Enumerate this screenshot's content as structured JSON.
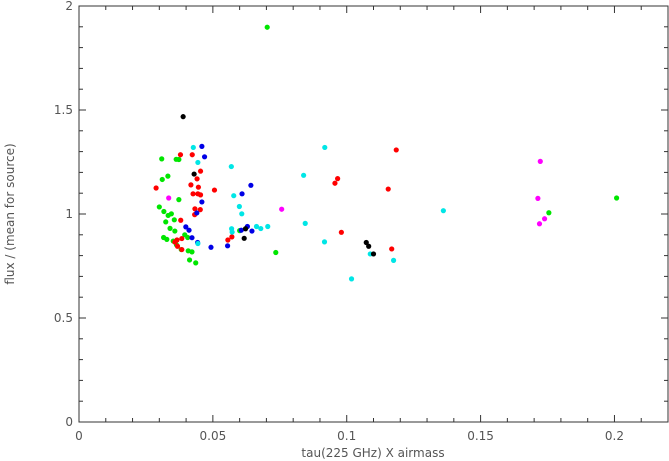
{
  "chart_data": {
    "type": "scatter",
    "title": "",
    "xlabel": "tau(225 GHz) X airmass",
    "ylabel": "flux / (mean for source)",
    "xlim": [
      0,
      0.22
    ],
    "ylim": [
      0,
      2
    ],
    "xticks": [
      0,
      0.05,
      0.1,
      0.15,
      0.2
    ],
    "xtick_labels": [
      "0",
      "0.05",
      "0.1",
      "0.15",
      "0.2"
    ],
    "yticks": [
      0,
      0.5,
      1,
      1.5,
      2
    ],
    "ytick_labels": [
      "0",
      "0.5",
      "1",
      "1.5",
      "2"
    ],
    "grid": false,
    "series": [
      {
        "color": "#00e600",
        "points": [
          [
            0.0703,
            1.898
          ],
          [
            0.0309,
            1.265
          ],
          [
            0.0332,
            1.182
          ],
          [
            0.0311,
            1.166
          ],
          [
            0.0363,
            1.263
          ],
          [
            0.0373,
            1.262
          ],
          [
            0.0373,
            1.069
          ],
          [
            0.03,
            1.034
          ],
          [
            0.0317,
            1.012
          ],
          [
            0.0345,
            1.001
          ],
          [
            0.0333,
            0.993
          ],
          [
            0.0356,
            0.972
          ],
          [
            0.0324,
            0.962
          ],
          [
            0.034,
            0.931
          ],
          [
            0.0358,
            0.918
          ],
          [
            0.0316,
            0.887
          ],
          [
            0.0328,
            0.878
          ],
          [
            0.0352,
            0.87
          ],
          [
            0.0364,
            0.852
          ],
          [
            0.0408,
            0.823
          ],
          [
            0.0422,
            0.818
          ],
          [
            0.0382,
            0.829
          ],
          [
            0.0413,
            0.779
          ],
          [
            0.0436,
            0.765
          ],
          [
            0.0395,
            0.9
          ],
          [
            0.0406,
            0.887
          ],
          [
            0.06,
            0.92
          ],
          [
            0.0735,
            0.815
          ],
          [
            0.1755,
            1.006
          ],
          [
            0.2008,
            1.077
          ]
        ]
      },
      {
        "color": "#ff0000",
        "points": [
          [
            0.0379,
            1.285
          ],
          [
            0.0423,
            1.285
          ],
          [
            0.0454,
            1.206
          ],
          [
            0.0441,
            1.169
          ],
          [
            0.0418,
            1.14
          ],
          [
            0.0446,
            1.129
          ],
          [
            0.0288,
            1.125
          ],
          [
            0.0426,
            1.097
          ],
          [
            0.0444,
            1.097
          ],
          [
            0.0454,
            1.092
          ],
          [
            0.0506,
            1.115
          ],
          [
            0.0433,
            1.025
          ],
          [
            0.0453,
            1.021
          ],
          [
            0.0432,
            0.997
          ],
          [
            0.0384,
            0.882
          ],
          [
            0.0366,
            0.875
          ],
          [
            0.0358,
            0.865
          ],
          [
            0.0368,
            0.845
          ],
          [
            0.0384,
            0.829
          ],
          [
            0.0556,
            0.875
          ],
          [
            0.0571,
            0.89
          ],
          [
            0.0966,
            1.17
          ],
          [
            0.0956,
            1.148
          ],
          [
            0.098,
            0.912
          ],
          [
            0.1155,
            1.12
          ],
          [
            0.1185,
            1.308
          ],
          [
            0.1168,
            0.832
          ],
          [
            0.038,
            0.97
          ]
        ]
      },
      {
        "color": "#0000e6",
        "points": [
          [
            0.0459,
            1.325
          ],
          [
            0.0469,
            1.275
          ],
          [
            0.0642,
            1.138
          ],
          [
            0.0609,
            1.097
          ],
          [
            0.0459,
            1.058
          ],
          [
            0.044,
            1.005
          ],
          [
            0.0399,
            0.938
          ],
          [
            0.0411,
            0.922
          ],
          [
            0.0422,
            0.886
          ],
          [
            0.0443,
            0.863
          ],
          [
            0.0555,
            0.847
          ],
          [
            0.0493,
            0.84
          ],
          [
            0.0606,
            0.922
          ],
          [
            0.0629,
            0.94
          ],
          [
            0.0646,
            0.918
          ]
        ]
      },
      {
        "color": "#00e6e6",
        "points": [
          [
            0.0918,
            1.32
          ],
          [
            0.0444,
            1.248
          ],
          [
            0.0569,
            1.228
          ],
          [
            0.0839,
            1.186
          ],
          [
            0.0427,
            1.32
          ],
          [
            0.0578,
            1.088
          ],
          [
            0.0599,
            1.036
          ],
          [
            0.0608,
            1.001
          ],
          [
            0.0663,
            0.94
          ],
          [
            0.0679,
            0.93
          ],
          [
            0.0705,
            0.94
          ],
          [
            0.057,
            0.929
          ],
          [
            0.0572,
            0.913
          ],
          [
            0.0845,
            0.955
          ],
          [
            0.0917,
            0.866
          ],
          [
            0.1018,
            0.688
          ],
          [
            0.1088,
            0.808
          ],
          [
            0.1175,
            0.777
          ],
          [
            0.1361,
            1.016
          ],
          [
            0.0444,
            0.858
          ]
        ]
      },
      {
        "color": "#000000",
        "points": [
          [
            0.0389,
            1.468
          ],
          [
            0.043,
            1.192
          ],
          [
            0.0617,
            0.883
          ],
          [
            0.1073,
            0.863
          ],
          [
            0.1082,
            0.845
          ],
          [
            0.11,
            0.808
          ],
          [
            0.0622,
            0.929
          ]
        ]
      },
      {
        "color": "#ff00ff",
        "points": [
          [
            0.0335,
            1.077
          ],
          [
            0.0757,
            1.023
          ],
          [
            0.1723,
            1.253
          ],
          [
            0.1714,
            1.075
          ],
          [
            0.1739,
            0.977
          ],
          [
            0.172,
            0.953
          ]
        ]
      }
    ]
  }
}
